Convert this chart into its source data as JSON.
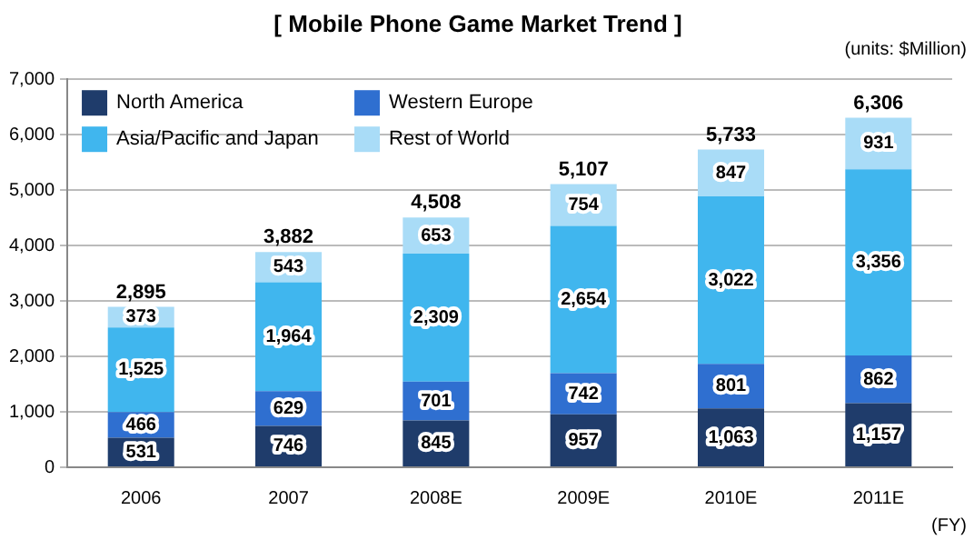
{
  "chart_data": {
    "type": "bar",
    "title": "[ Mobile Phone Game Market Trend ]",
    "categories": [
      "2006",
      "2007",
      "2008E",
      "2009E",
      "2010E",
      "2011E"
    ],
    "stacked": true,
    "series": [
      {
        "name": "North America",
        "color": "#1f3c6b",
        "values": [
          531,
          746,
          845,
          957,
          1063,
          1157
        ],
        "value_labels": [
          "531",
          "746",
          "845",
          "957",
          "1,063",
          "1,157"
        ]
      },
      {
        "name": "Western Europe",
        "color": "#2f6fd0",
        "values": [
          466,
          629,
          701,
          742,
          801,
          862
        ],
        "value_labels": [
          "466",
          "629",
          "701",
          "742",
          "801",
          "862"
        ]
      },
      {
        "name": "Asia/Pacific and Japan",
        "color": "#40b6ee",
        "values": [
          1525,
          1964,
          2309,
          2654,
          3022,
          3356
        ],
        "value_labels": [
          "1,525",
          "1,964",
          "2,309",
          "2,654",
          "3,022",
          "3,356"
        ]
      },
      {
        "name": "Rest of World",
        "color": "#a9dcf7",
        "values": [
          373,
          543,
          653,
          754,
          847,
          931
        ],
        "value_labels": [
          "373",
          "543",
          "653",
          "754",
          "847",
          "931"
        ]
      }
    ],
    "totals": [
      "2,895",
      "3,882",
      "4,508",
      "5,107",
      "5,733",
      "6,306"
    ],
    "ylim": [
      0,
      7000
    ],
    "yticks": [
      0,
      {
        "value": 1000,
        "label": "1,000"
      },
      {
        "value": 2000,
        "label": "2,000"
      },
      {
        "value": 3000,
        "label": "3,000"
      },
      {
        "value": 4000,
        "label": "4,000"
      },
      {
        "value": 5000,
        "label": "5,000"
      },
      {
        "value": 6000,
        "label": "6,000"
      },
      {
        "value": 7000,
        "label": "7,000"
      }
    ],
    "grid": "y",
    "legend": "top left",
    "annotations": [
      "(units: $Million)",
      "(FY)"
    ]
  }
}
